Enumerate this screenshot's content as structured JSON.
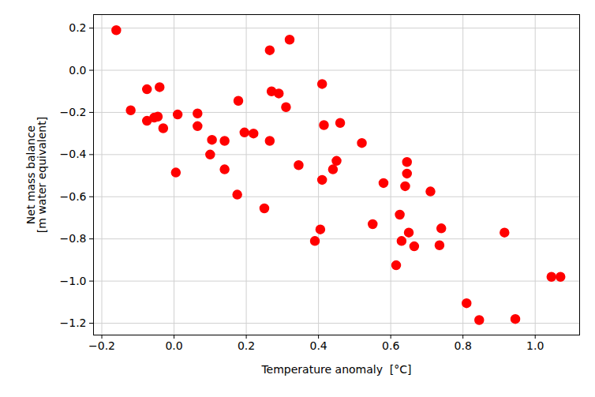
{
  "chart_data": {
    "type": "scatter",
    "xlabel": "Temperature anomaly  [°C]",
    "ylabel": "Net mass balance\n[m water equivalent]",
    "color": "#ff0000",
    "marker": "circle",
    "grid": true,
    "xlim": [
      -0.223,
      1.123
    ],
    "ylim": [
      -1.256,
      0.264
    ],
    "xticks": [
      {
        "value": -0.2,
        "label": "−0.2"
      },
      {
        "value": 0,
        "label": "0.0"
      },
      {
        "value": 0.2,
        "label": "0.2"
      },
      {
        "value": 0.4,
        "label": "0.4"
      },
      {
        "value": 0.6,
        "label": "0.6"
      },
      {
        "value": 0.8,
        "label": "0.8"
      },
      {
        "value": 1,
        "label": "1.0"
      }
    ],
    "yticks": [
      {
        "value": -1.2,
        "label": "−1.2"
      },
      {
        "value": -1,
        "label": "−1.0"
      },
      {
        "value": -0.8,
        "label": "−0.8"
      },
      {
        "value": -0.6,
        "label": "−0.6"
      },
      {
        "value": -0.4,
        "label": "−0.4"
      },
      {
        "value": -0.2,
        "label": "−0.2"
      },
      {
        "value": 0,
        "label": "0.0"
      },
      {
        "value": 0.2,
        "label": "0.2"
      }
    ],
    "x": [
      -0.16,
      -0.12,
      -0.075,
      -0.075,
      -0.055,
      -0.045,
      -0.04,
      -0.03,
      0.005,
      0.01,
      0.065,
      0.065,
      0.1,
      0.105,
      0.14,
      0.14,
      0.175,
      0.178,
      0.195,
      0.22,
      0.25,
      0.265,
      0.265,
      0.27,
      0.29,
      0.31,
      0.32,
      0.345,
      0.39,
      0.405,
      0.41,
      0.41,
      0.415,
      0.44,
      0.45,
      0.46,
      0.52,
      0.55,
      0.58,
      0.615,
      0.625,
      0.63,
      0.64,
      0.645,
      0.645,
      0.65,
      0.665,
      0.71,
      0.735,
      0.74,
      0.81,
      0.845,
      0.915,
      0.945,
      1.045,
      1.07
    ],
    "values": [
      0.19,
      -0.19,
      -0.09,
      -0.24,
      -0.225,
      -0.22,
      -0.08,
      -0.275,
      -0.485,
      -0.21,
      -0.205,
      -0.265,
      -0.4,
      -0.33,
      -0.335,
      -0.47,
      -0.59,
      -0.145,
      -0.295,
      -0.3,
      -0.655,
      0.095,
      -0.335,
      -0.1,
      -0.11,
      -0.175,
      0.145,
      -0.45,
      -0.81,
      -0.755,
      -0.52,
      -0.065,
      -0.26,
      -0.47,
      -0.43,
      -0.25,
      -0.345,
      -0.73,
      -0.535,
      -0.925,
      -0.685,
      -0.81,
      -0.55,
      -0.435,
      -0.49,
      -0.77,
      -0.835,
      -0.575,
      -0.83,
      -0.75,
      -1.105,
      -1.185,
      -0.77,
      -1.18,
      -0.98,
      -0.98
    ]
  }
}
